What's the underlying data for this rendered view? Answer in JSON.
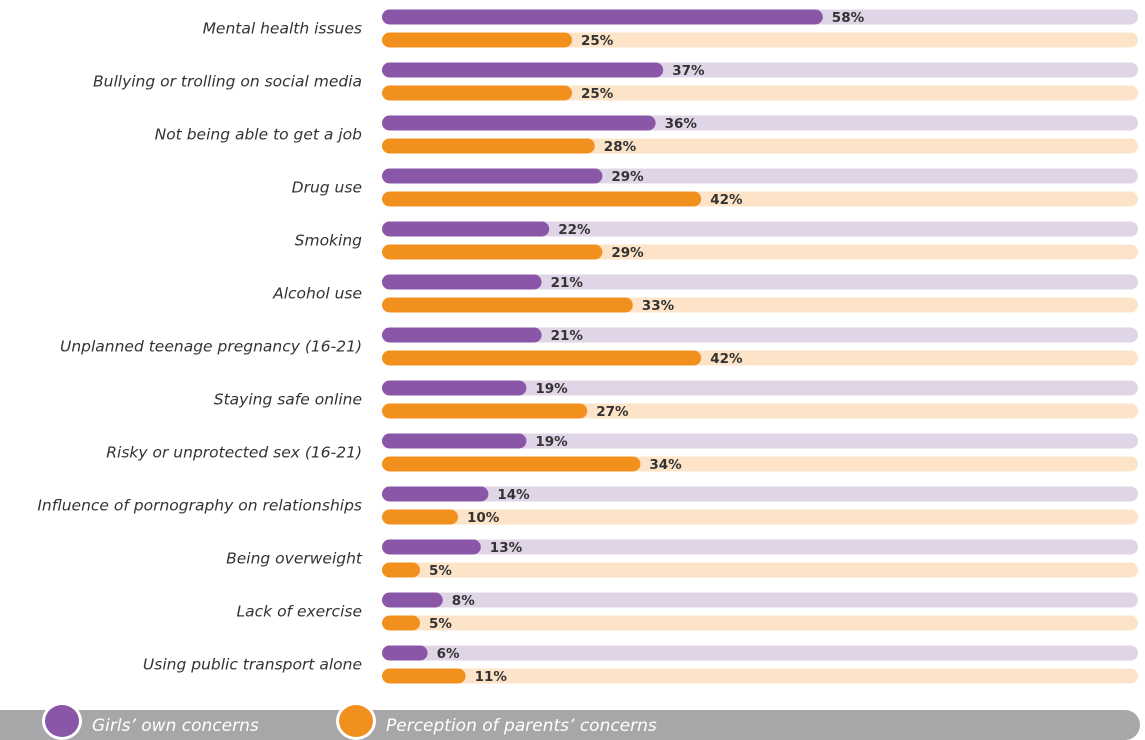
{
  "chart_data": {
    "type": "bar",
    "orientation": "horizontal",
    "categories": [
      "Mental health issues",
      "Bullying or trolling on social media",
      "Not being able to get a job",
      "Drug use",
      "Smoking",
      "Alcohol use",
      "Unplanned teenage pregnancy (16-21)",
      "Staying safe online",
      "Risky or unprotected sex (16-21)",
      "Influence of pornography on relationships",
      "Being overweight",
      "Lack of exercise",
      "Using public transport alone"
    ],
    "series": [
      {
        "name": "Girls’ own concerns",
        "color": "#8a56a8",
        "track_color": "#e0d5e7",
        "values": [
          58,
          37,
          36,
          29,
          22,
          21,
          21,
          19,
          19,
          14,
          13,
          8,
          6
        ]
      },
      {
        "name": "Perception of parents’ concerns",
        "color": "#f2901e",
        "track_color": "#fde4c8",
        "values": [
          25,
          25,
          28,
          42,
          29,
          33,
          42,
          27,
          34,
          10,
          5,
          5,
          11
        ]
      }
    ],
    "value_suffix": "%",
    "xlim": [
      0,
      100
    ],
    "grid": false,
    "legend_position": "bottom"
  },
  "legend": {
    "girls_label": "Girls’ own concerns",
    "parents_label": "Perception of parents’ concerns",
    "girls_color": "#8a56a8",
    "parents_color": "#f2901e",
    "band_color": "#a7a7a9"
  }
}
